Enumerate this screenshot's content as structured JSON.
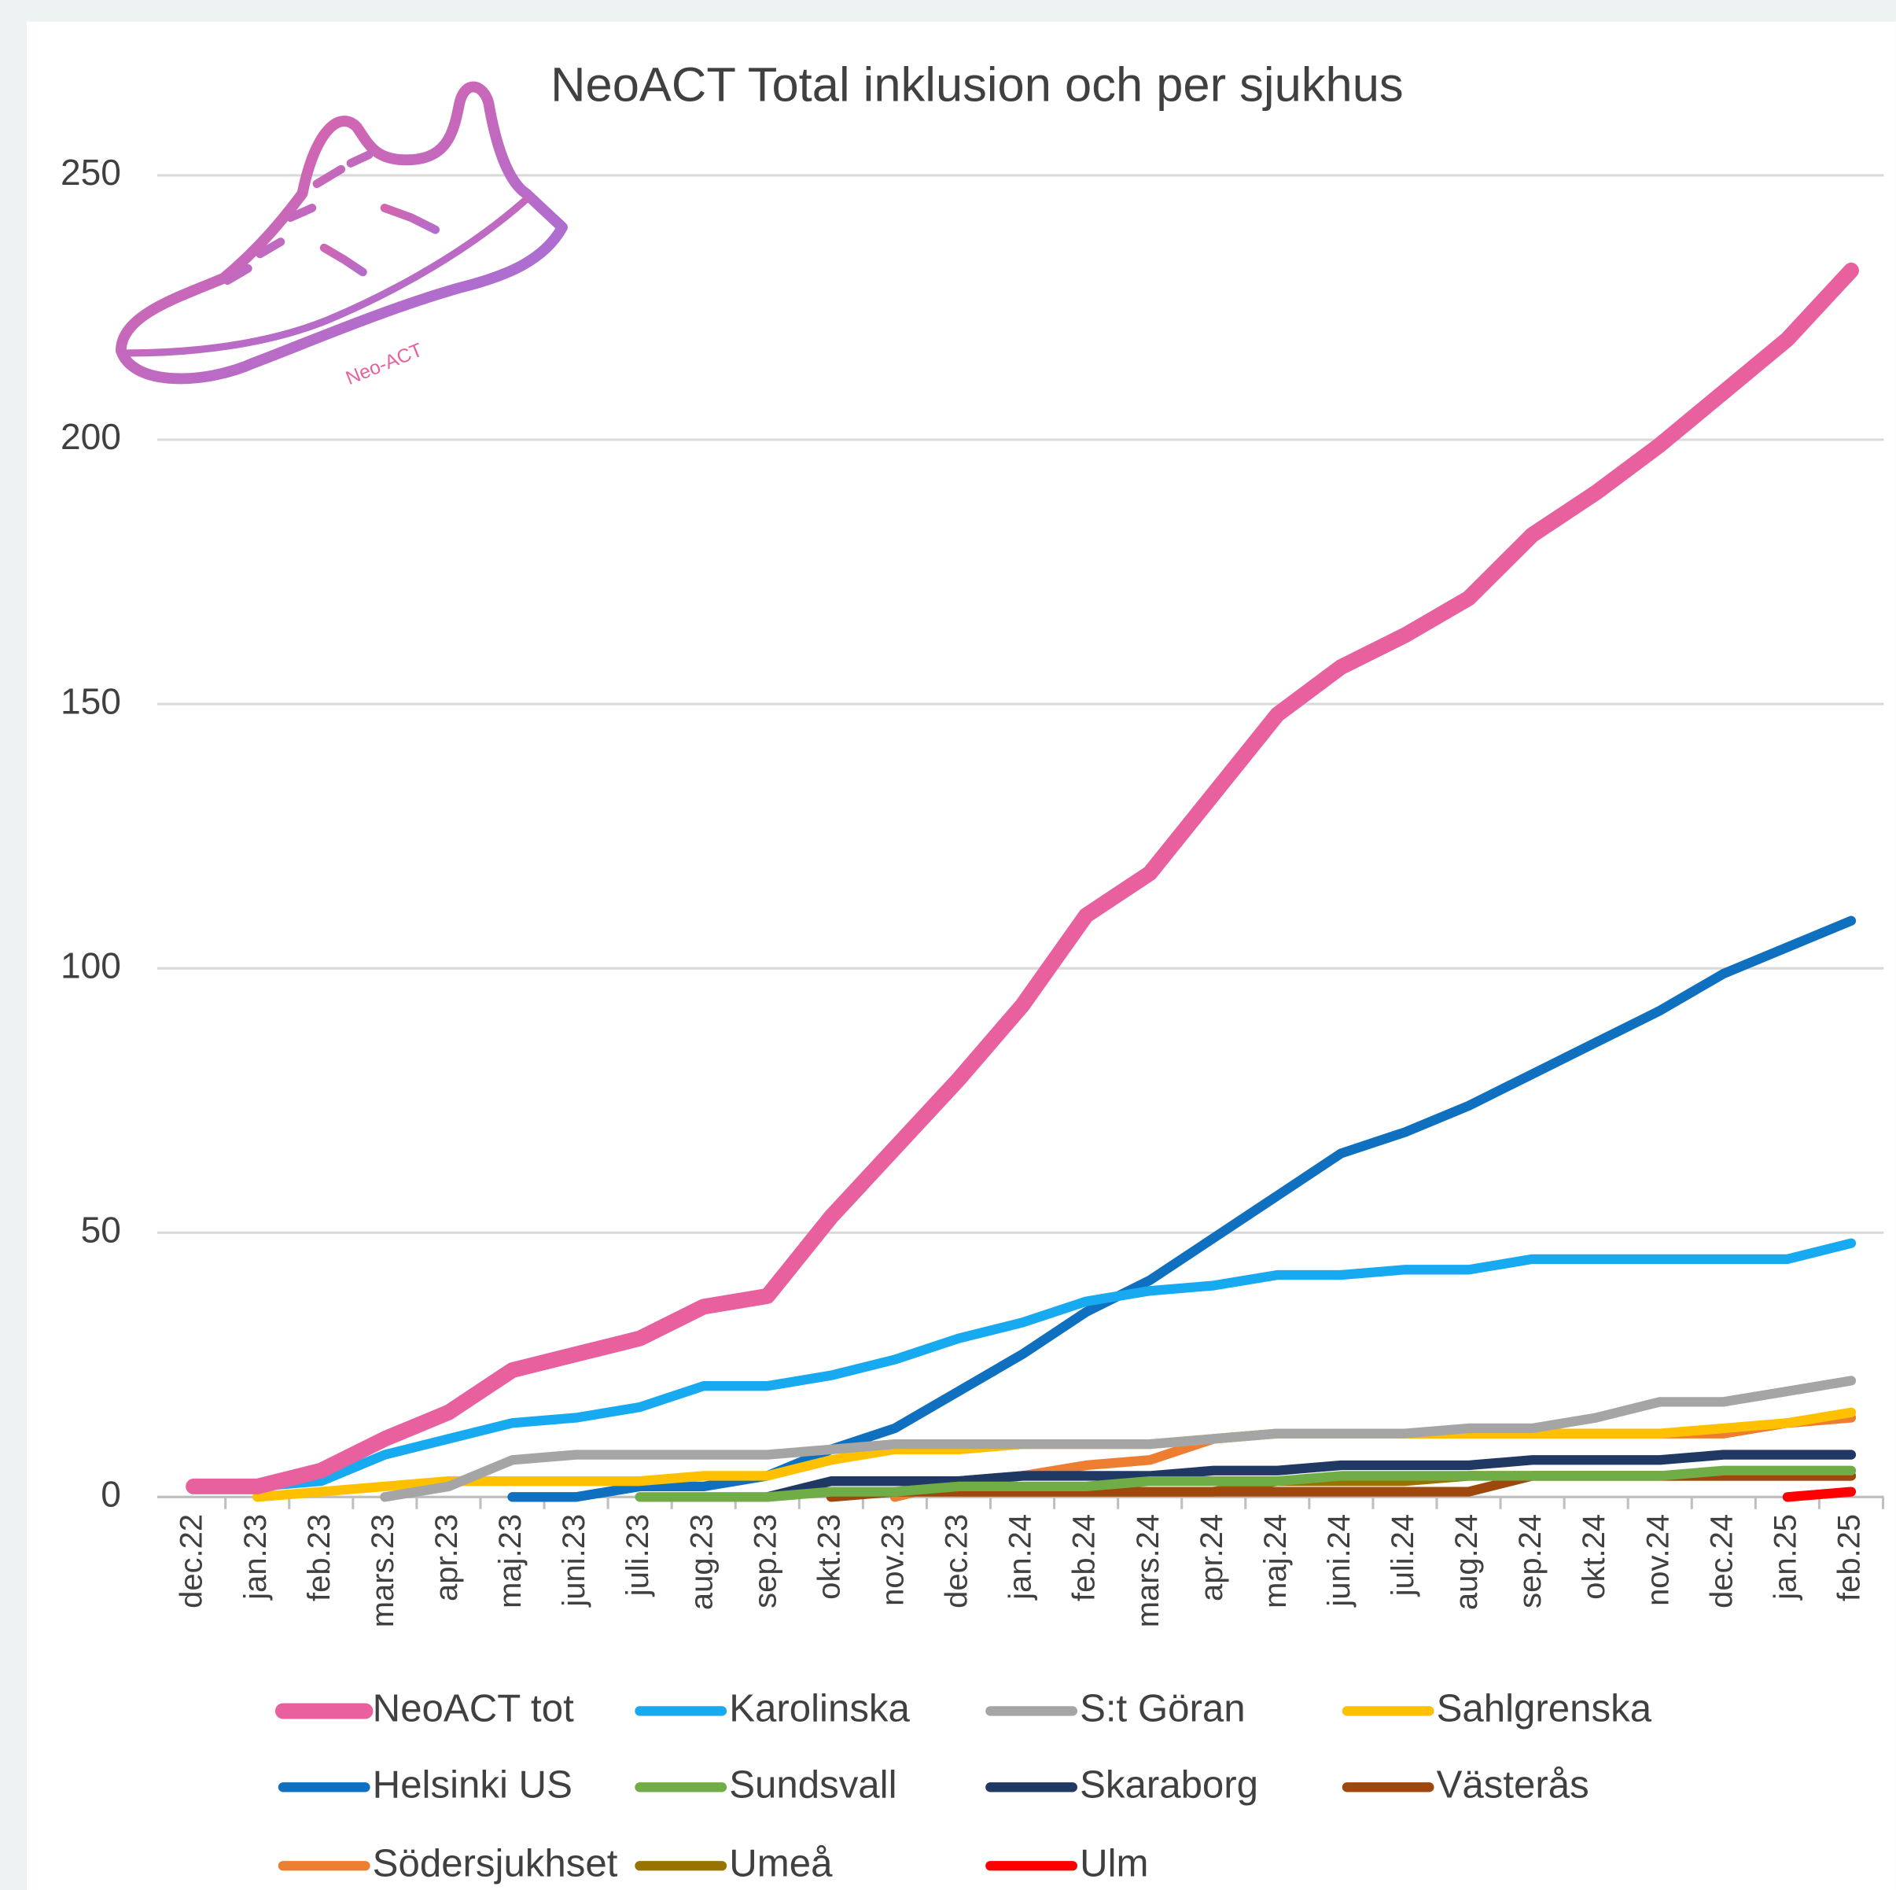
{
  "logo_text": "Neo-ACT",
  "chart_data": {
    "type": "line",
    "title": "NeoACT Total inklusion och per sjukhus",
    "categories": [
      "dec.22",
      "jan.23",
      "feb.23",
      "mars.23",
      "apr.23",
      "maj.23",
      "juni.23",
      "juli.23",
      "aug.23",
      "sep.23",
      "okt.23",
      "nov.23",
      "dec.23",
      "jan.24",
      "feb.24",
      "mars.24",
      "apr.24",
      "maj.24",
      "juni.24",
      "juli.24",
      "aug.24",
      "sep.24",
      "okt.24",
      "nov.24",
      "dec.24",
      "jan.25",
      "feb.25"
    ],
    "ylim": [
      0,
      250
    ],
    "yticks": [
      0,
      50,
      100,
      150,
      200,
      250
    ],
    "grid": true,
    "legend": "bottom",
    "series": [
      {
        "name": "NeoACT tot",
        "color": "#e8609d",
        "values": [
          2,
          2,
          5,
          11,
          16,
          24,
          27,
          30,
          36,
          38,
          53,
          66,
          79,
          93,
          110,
          118,
          133,
          148,
          157,
          163,
          170,
          182,
          190,
          199,
          209,
          219,
          232
        ]
      },
      {
        "name": "Karolinska",
        "color": "#18aaf0",
        "values": [
          2,
          2,
          3,
          8,
          11,
          14,
          15,
          17,
          21,
          21,
          23,
          26,
          30,
          33,
          37,
          39,
          40,
          42,
          42,
          43,
          43,
          45,
          45,
          45,
          45,
          45,
          48
        ]
      },
      {
        "name": "S:t Göran",
        "color": "#a5a5a5",
        "values": [
          null,
          null,
          null,
          0,
          2,
          7,
          8,
          8,
          8,
          8,
          9,
          10,
          10,
          10,
          10,
          10,
          11,
          12,
          12,
          12,
          13,
          13,
          15,
          18,
          18,
          20,
          22
        ]
      },
      {
        "name": "Sahlgrenska",
        "color": "#ffc000",
        "values": [
          null,
          0,
          1,
          2,
          3,
          3,
          3,
          3,
          4,
          4,
          7,
          9,
          9,
          10,
          10,
          10,
          11,
          12,
          12,
          12,
          12,
          12,
          12,
          12,
          13,
          14,
          16
        ]
      },
      {
        "name": "Helsinki US",
        "color": "#0f70c0",
        "values": [
          null,
          null,
          null,
          null,
          null,
          0,
          0,
          2,
          2,
          4,
          9,
          13,
          20,
          27,
          35,
          41,
          49,
          57,
          65,
          69,
          74,
          80,
          86,
          92,
          99,
          104,
          109
        ]
      },
      {
        "name": "Sundsvall",
        "color": "#70ad47",
        "values": [
          null,
          null,
          null,
          null,
          null,
          null,
          null,
          0,
          0,
          0,
          1,
          1,
          2,
          2,
          2,
          3,
          3,
          3,
          4,
          4,
          4,
          4,
          4,
          4,
          5,
          5,
          5
        ]
      },
      {
        "name": "Skaraborg",
        "color": "#203864",
        "values": [
          null,
          null,
          null,
          null,
          null,
          null,
          null,
          null,
          null,
          0,
          3,
          3,
          3,
          4,
          4,
          4,
          5,
          5,
          6,
          6,
          6,
          7,
          7,
          7,
          8,
          8,
          8
        ]
      },
      {
        "name": "Västerås",
        "color": "#9e480e",
        "values": [
          null,
          null,
          null,
          null,
          null,
          null,
          null,
          null,
          null,
          null,
          0,
          1,
          1,
          1,
          1,
          1,
          1,
          1,
          1,
          1,
          1,
          4,
          4,
          4,
          4,
          4,
          4
        ]
      },
      {
        "name": "Södersjukhset",
        "color": "#ed7d31",
        "values": [
          null,
          null,
          null,
          null,
          null,
          null,
          null,
          null,
          null,
          null,
          null,
          0,
          3,
          4,
          6,
          7,
          11,
          12,
          12,
          12,
          12,
          12,
          12,
          12,
          12,
          14,
          15
        ]
      },
      {
        "name": "Umeå",
        "color": "#997300",
        "values": [
          null,
          null,
          null,
          null,
          null,
          null,
          null,
          null,
          null,
          null,
          null,
          1,
          1,
          1,
          1,
          1,
          1,
          3,
          3,
          3,
          4,
          4,
          4,
          4,
          4,
          4,
          4
        ]
      },
      {
        "name": "Ulm",
        "color": "#ff0000",
        "values": [
          null,
          null,
          null,
          null,
          null,
          null,
          null,
          null,
          null,
          null,
          null,
          null,
          null,
          null,
          null,
          null,
          null,
          null,
          null,
          null,
          null,
          null,
          null,
          null,
          null,
          0,
          1
        ]
      }
    ]
  }
}
